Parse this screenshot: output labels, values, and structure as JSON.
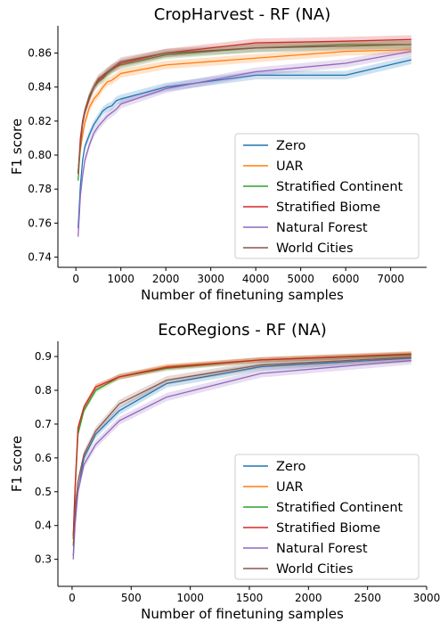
{
  "chart_data": [
    {
      "type": "line",
      "title": "CropHarvest - RF (NA)",
      "xlabel": "Number of finetuning samples",
      "ylabel": "F1 score",
      "xlim": [
        -400,
        7800
      ],
      "ylim": [
        0.734,
        0.876
      ],
      "xticks": [
        0,
        1000,
        2000,
        3000,
        4000,
        5000,
        6000,
        7000
      ],
      "yticks": [
        0.74,
        0.76,
        0.78,
        0.8,
        0.82,
        0.84,
        0.86
      ],
      "ytick_decimals": 2,
      "legend_position": "lower-right",
      "grid": false,
      "series": [
        {
          "name": "Zero",
          "color": "#1f77b4",
          "x": [
            50,
            100,
            150,
            200,
            300,
            400,
            500,
            600,
            700,
            800,
            900,
            1000,
            2000,
            4000,
            6000,
            7460
          ],
          "y": [
            0.757,
            0.782,
            0.797,
            0.805,
            0.812,
            0.818,
            0.822,
            0.826,
            0.828,
            0.829,
            0.832,
            0.833,
            0.84,
            0.847,
            0.847,
            0.856
          ],
          "band": 0.0025
        },
        {
          "name": "UAR",
          "color": "#ff7f0e",
          "x": [
            50,
            100,
            150,
            200,
            300,
            400,
            500,
            600,
            700,
            800,
            900,
            1000,
            2000,
            4000,
            6000,
            7460
          ],
          "y": [
            0.789,
            0.803,
            0.812,
            0.819,
            0.828,
            0.833,
            0.836,
            0.84,
            0.843,
            0.844,
            0.846,
            0.848,
            0.853,
            0.857,
            0.861,
            0.862
          ],
          "band": 0.0025
        },
        {
          "name": "Stratified Continent",
          "color": "#2ca02c",
          "x": [
            50,
            100,
            150,
            200,
            300,
            400,
            500,
            600,
            700,
            800,
            900,
            1000,
            2000,
            4000,
            6000,
            7460
          ],
          "y": [
            0.785,
            0.807,
            0.82,
            0.826,
            0.835,
            0.84,
            0.843,
            0.845,
            0.848,
            0.85,
            0.852,
            0.853,
            0.859,
            0.863,
            0.865,
            0.865
          ],
          "band": 0.0025
        },
        {
          "name": "Stratified Biome",
          "color": "#d62728",
          "x": [
            50,
            100,
            150,
            200,
            300,
            400,
            500,
            600,
            700,
            800,
            900,
            1000,
            2000,
            4000,
            6000,
            7460
          ],
          "y": [
            0.789,
            0.81,
            0.82,
            0.826,
            0.834,
            0.84,
            0.844,
            0.846,
            0.849,
            0.851,
            0.852,
            0.854,
            0.86,
            0.866,
            0.867,
            0.868
          ],
          "band": 0.0025
        },
        {
          "name": "Natural Forest",
          "color": "#9467bd",
          "x": [
            50,
            100,
            150,
            200,
            300,
            400,
            500,
            600,
            700,
            800,
            900,
            1000,
            2000,
            4000,
            6000,
            7460
          ],
          "y": [
            0.752,
            0.776,
            0.788,
            0.797,
            0.806,
            0.813,
            0.817,
            0.82,
            0.823,
            0.825,
            0.827,
            0.83,
            0.839,
            0.849,
            0.854,
            0.861
          ],
          "band": 0.0025
        },
        {
          "name": "World Cities",
          "color": "#8c564b",
          "x": [
            50,
            100,
            150,
            200,
            300,
            400,
            500,
            600,
            700,
            800,
            900,
            1000,
            2000,
            4000,
            6000,
            7460
          ],
          "y": [
            0.79,
            0.806,
            0.818,
            0.825,
            0.833,
            0.84,
            0.845,
            0.847,
            0.849,
            0.851,
            0.853,
            0.855,
            0.86,
            0.863,
            0.864,
            0.865
          ],
          "band": 0.0025
        }
      ]
    },
    {
      "type": "line",
      "title": "EcoRegions - RF (NA)",
      "xlabel": "Number of finetuning samples",
      "ylabel": "F1 score",
      "xlim": [
        -120,
        3000
      ],
      "ylim": [
        0.22,
        0.945
      ],
      "xticks": [
        0,
        500,
        1000,
        1500,
        2000,
        2500,
        3000
      ],
      "yticks": [
        0.3,
        0.4,
        0.5,
        0.6,
        0.7,
        0.8,
        0.9
      ],
      "ytick_decimals": 1,
      "legend_position": "lower-right",
      "grid": false,
      "series": [
        {
          "name": "Zero",
          "color": "#1f77b4",
          "x": [
            10,
            25,
            50,
            100,
            200,
            400,
            800,
            1600,
            2870
          ],
          "y": [
            0.31,
            0.42,
            0.5,
            0.6,
            0.67,
            0.74,
            0.82,
            0.87,
            0.895
          ],
          "band": 0.012
        },
        {
          "name": "UAR",
          "color": "#ff7f0e",
          "x": [
            10,
            25,
            50,
            100,
            200,
            400,
            800,
            1600,
            2870
          ],
          "y": [
            0.36,
            0.5,
            0.68,
            0.75,
            0.81,
            0.84,
            0.87,
            0.89,
            0.908
          ],
          "band": 0.008
        },
        {
          "name": "Stratified Continent",
          "color": "#2ca02c",
          "x": [
            10,
            25,
            50,
            100,
            200,
            400,
            800,
            1600,
            2870
          ],
          "y": [
            0.36,
            0.5,
            0.67,
            0.74,
            0.8,
            0.84,
            0.865,
            0.89,
            0.905
          ],
          "band": 0.008
        },
        {
          "name": "Stratified Biome",
          "color": "#d62728",
          "x": [
            10,
            25,
            50,
            100,
            200,
            400,
            800,
            1600,
            2870
          ],
          "y": [
            0.37,
            0.51,
            0.69,
            0.75,
            0.81,
            0.84,
            0.868,
            0.89,
            0.907
          ],
          "band": 0.008
        },
        {
          "name": "Natural Forest",
          "color": "#9467bd",
          "x": [
            10,
            25,
            50,
            100,
            200,
            400,
            800,
            1600,
            2870
          ],
          "y": [
            0.3,
            0.4,
            0.5,
            0.58,
            0.64,
            0.71,
            0.78,
            0.85,
            0.888
          ],
          "band": 0.012
        },
        {
          "name": "World Cities",
          "color": "#8c564b",
          "x": [
            10,
            25,
            50,
            100,
            200,
            400,
            800,
            1600,
            2870
          ],
          "y": [
            0.34,
            0.45,
            0.53,
            0.61,
            0.68,
            0.76,
            0.83,
            0.875,
            0.898
          ],
          "band": 0.012
        }
      ]
    }
  ]
}
